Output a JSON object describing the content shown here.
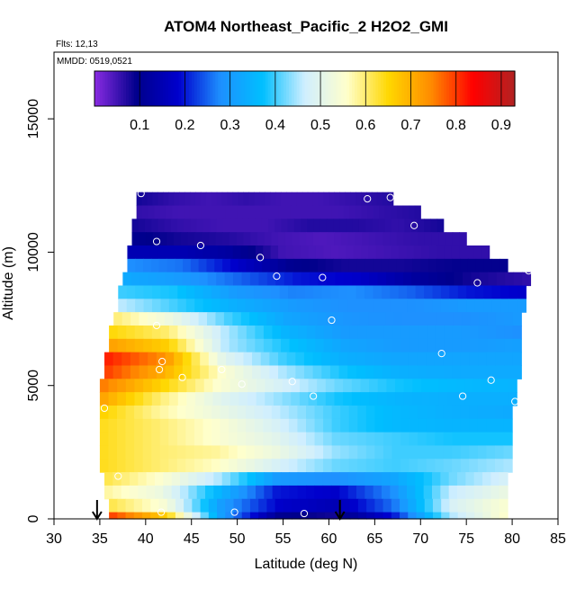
{
  "chart_data": {
    "type": "heatmap",
    "title": "ATOM4 Northeast_Pacific_2 H2O2_GMI",
    "flights_label": "Flts: 12,13",
    "mmdd_label": "MMDD: 0519,0521",
    "xlabel": "Latitude (deg N)",
    "ylabel": "Altitude (m)",
    "xlim": [
      30,
      85
    ],
    "ylim": [
      0,
      17500
    ],
    "xticks": [
      "30",
      "35",
      "40",
      "45",
      "50",
      "55",
      "60",
      "65",
      "70",
      "75",
      "80",
      "85"
    ],
    "yticks": [
      "0",
      "5000",
      "10000",
      "15000"
    ],
    "colorbar": {
      "range": [
        0.0,
        0.93
      ],
      "ticks": [
        "0.1",
        "0.2",
        "0.3",
        "0.4",
        "0.5",
        "0.6",
        "0.7",
        "0.8",
        "0.9"
      ],
      "colors": [
        "#8a2be2",
        "#00008b",
        "#0000cd",
        "#1e90ff",
        "#00bfff",
        "#cfeeff",
        "#ffffcc",
        "#ffd700",
        "#ff8c00",
        "#ff0000",
        "#b22222"
      ]
    },
    "grid": false,
    "arrows_x": [
      34.7,
      61.2
    ],
    "levels_alt": [
      12000,
      11500,
      11000,
      10500,
      10000,
      9500,
      9000,
      8500,
      8000,
      7500,
      7000,
      6500,
      6000,
      5500,
      5000,
      4500,
      4000,
      3500,
      3000,
      2500,
      2000,
      1500,
      1000,
      500,
      0
    ],
    "level_lat_range": [
      [
        39,
        67
      ],
      [
        39,
        70
      ],
      [
        38.5,
        72.5
      ],
      [
        38.5,
        75
      ],
      [
        38,
        77.5
      ],
      [
        38,
        79.5
      ],
      [
        37.5,
        82
      ],
      [
        37,
        81.5
      ],
      [
        37,
        81.5
      ],
      [
        36.5,
        81
      ],
      [
        36,
        81
      ],
      [
        36,
        81
      ],
      [
        35.5,
        81
      ],
      [
        35.5,
        81
      ],
      [
        35,
        80.5
      ],
      [
        35,
        80.5
      ],
      [
        35,
        80
      ],
      [
        35,
        80
      ],
      [
        35,
        80
      ],
      [
        35,
        80
      ],
      [
        35,
        80
      ],
      [
        35.5,
        79.5
      ],
      [
        35.5,
        79.5
      ],
      [
        36,
        79.5
      ],
      [
        36,
        79.5
      ]
    ],
    "h2o2": [
      [
        0.08,
        0.06,
        0.05,
        0.06,
        0.05,
        0.05,
        0.06,
        0.07
      ],
      [
        0.06,
        0.05,
        0.05,
        0.05,
        0.05,
        0.05,
        0.06,
        0.07
      ],
      [
        0.08,
        0.06,
        0.05,
        0.05,
        0.07,
        0.07,
        0.06,
        0.08
      ],
      [
        0.1,
        0.08,
        0.07,
        0.05,
        0.04,
        0.05,
        0.06,
        0.06
      ],
      [
        0.15,
        0.15,
        0.12,
        0.05,
        0.04,
        0.05,
        0.06,
        0.06
      ],
      [
        0.28,
        0.26,
        0.18,
        0.1,
        0.08,
        0.08,
        0.09,
        0.09
      ],
      [
        0.33,
        0.3,
        0.25,
        0.2,
        0.18,
        0.12,
        0.08,
        0.06
      ],
      [
        0.4,
        0.38,
        0.3,
        0.27,
        0.28,
        0.25,
        0.2,
        0.18
      ],
      [
        0.46,
        0.4,
        0.34,
        0.3,
        0.28,
        0.28,
        0.3,
        0.3
      ],
      [
        0.6,
        0.52,
        0.4,
        0.32,
        0.29,
        0.28,
        0.28,
        0.3
      ],
      [
        0.65,
        0.6,
        0.45,
        0.35,
        0.3,
        0.3,
        0.3,
        0.28
      ],
      [
        0.72,
        0.66,
        0.45,
        0.38,
        0.32,
        0.3,
        0.3,
        0.31
      ],
      [
        0.82,
        0.74,
        0.5,
        0.4,
        0.34,
        0.32,
        0.32,
        0.32
      ],
      [
        0.8,
        0.7,
        0.55,
        0.45,
        0.38,
        0.34,
        0.33,
        0.33
      ],
      [
        0.76,
        0.66,
        0.55,
        0.48,
        0.42,
        0.38,
        0.36,
        0.35
      ],
      [
        0.72,
        0.6,
        0.5,
        0.44,
        0.38,
        0.35,
        0.34,
        0.34
      ],
      [
        0.66,
        0.58,
        0.52,
        0.46,
        0.4,
        0.36,
        0.34,
        0.33
      ],
      [
        0.64,
        0.6,
        0.55,
        0.48,
        0.4,
        0.36,
        0.35,
        0.35
      ],
      [
        0.64,
        0.6,
        0.55,
        0.5,
        0.42,
        0.4,
        0.38,
        0.38
      ],
      [
        0.64,
        0.6,
        0.58,
        0.52,
        0.44,
        0.4,
        0.4,
        0.42
      ],
      [
        0.64,
        0.6,
        0.56,
        0.48,
        0.42,
        0.4,
        0.42,
        0.45
      ],
      [
        0.62,
        0.55,
        0.45,
        0.3,
        0.28,
        0.32,
        0.42,
        0.48
      ],
      [
        0.58,
        0.52,
        0.35,
        0.2,
        0.18,
        0.28,
        0.46,
        0.52
      ],
      [
        0.62,
        0.54,
        0.3,
        0.18,
        0.15,
        0.26,
        0.48,
        0.55
      ],
      [
        0.8,
        0.66,
        0.3,
        0.1,
        0.08,
        0.2,
        0.45,
        0.56
      ]
    ],
    "points": [
      [
        39.5,
        12200
      ],
      [
        64.2,
        12000
      ],
      [
        66.7,
        12050
      ],
      [
        69.3,
        11000
      ],
      [
        41.2,
        10400
      ],
      [
        46,
        10250
      ],
      [
        52.5,
        9800
      ],
      [
        54.3,
        9100
      ],
      [
        59.3,
        9050
      ],
      [
        76.2,
        8850
      ],
      [
        81.8,
        9300
      ],
      [
        41.2,
        7250
      ],
      [
        60.3,
        7450
      ],
      [
        72.3,
        6200
      ],
      [
        41.8,
        5900
      ],
      [
        41.5,
        5600
      ],
      [
        44,
        5300
      ],
      [
        48.3,
        5600
      ],
      [
        50.5,
        5050
      ],
      [
        56,
        5150
      ],
      [
        58.3,
        4600
      ],
      [
        74.6,
        4600
      ],
      [
        77.7,
        5200
      ],
      [
        80.3,
        4400
      ],
      [
        35.5,
        4150
      ],
      [
        37,
        1600
      ],
      [
        41.7,
        250
      ],
      [
        49.7,
        250
      ],
      [
        57.3,
        200
      ]
    ]
  }
}
